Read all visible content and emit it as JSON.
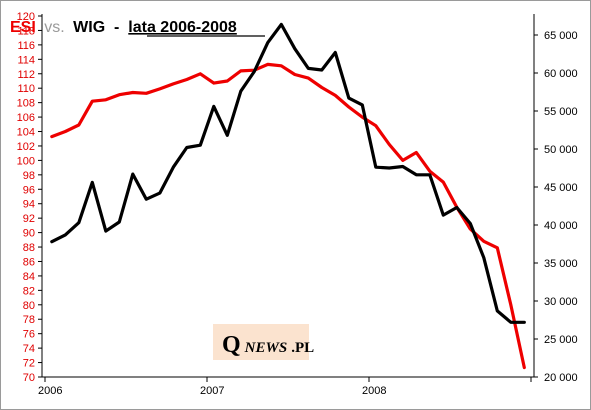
{
  "title": {
    "series1": "ESI",
    "vs": "vs.",
    "series2": "WIG",
    "dash": " - ",
    "subtitle": "lata 2006-2008"
  },
  "logo": {
    "q": "Q",
    "rest": "NEWS",
    "suffix": ".PL"
  },
  "colors": {
    "esi": "#ee0000",
    "wig": "#000000",
    "left_axis_text": "#e00000",
    "right_axis_text": "#000000",
    "logo_bg": "#fbe3cf"
  },
  "chart_data": {
    "type": "line",
    "x": [
      "2006-01",
      "2006-02",
      "2006-03",
      "2006-04",
      "2006-05",
      "2006-06",
      "2006-07",
      "2006-08",
      "2006-09",
      "2006-10",
      "2006-11",
      "2006-12",
      "2007-01",
      "2007-02",
      "2007-03",
      "2007-04",
      "2007-05",
      "2007-06",
      "2007-07",
      "2007-08",
      "2007-09",
      "2007-10",
      "2007-11",
      "2007-12",
      "2008-01",
      "2008-02",
      "2008-03",
      "2008-04",
      "2008-05",
      "2008-06",
      "2008-07",
      "2008-08",
      "2008-09",
      "2008-10",
      "2008-11",
      "2008-12"
    ],
    "x_tick_labels": [
      "2006",
      "2007",
      "2008"
    ],
    "series": [
      {
        "name": "ESI",
        "axis": "left",
        "values": [
          103.3,
          104.0,
          104.9,
          108.2,
          108.4,
          109.1,
          109.4,
          109.3,
          109.9,
          110.6,
          111.2,
          112.0,
          110.7,
          111.0,
          112.4,
          112.5,
          113.3,
          113.1,
          111.9,
          111.4,
          110.1,
          109.0,
          107.4,
          106.0,
          104.8,
          102.2,
          100.0,
          101.1,
          98.5,
          97.0,
          93.5,
          90.5,
          88.8,
          87.9,
          80.0,
          71.3
        ]
      },
      {
        "name": "WIG",
        "axis": "right",
        "values": [
          37800,
          38700,
          40300,
          45600,
          39200,
          40400,
          46700,
          43400,
          44200,
          47600,
          50200,
          50500,
          55600,
          51800,
          57600,
          60200,
          64000,
          66400,
          63200,
          60600,
          60400,
          62700,
          56700,
          55800,
          47600,
          47500,
          47700,
          46600,
          46600,
          41300,
          42300,
          40200,
          35700,
          28700,
          27200,
          27200
        ]
      }
    ],
    "y_left": {
      "min": 70,
      "max": 120,
      "ticks": [
        "70",
        "72",
        "74",
        "76",
        "78",
        "80",
        "82",
        "84",
        "86",
        "88",
        "90",
        "92",
        "94",
        "96",
        "98",
        "100",
        "102",
        "104",
        "106",
        "108",
        "110",
        "112",
        "114",
        "116",
        "118",
        "120"
      ]
    },
    "y_right": {
      "min": 20000,
      "max": 67500,
      "ticks": [
        "20 000",
        "25 000",
        "30 000",
        "35 000",
        "40 000",
        "45 000",
        "50 000",
        "55 000",
        "60 000",
        "65 000"
      ]
    },
    "grid": false,
    "legend": "none"
  }
}
